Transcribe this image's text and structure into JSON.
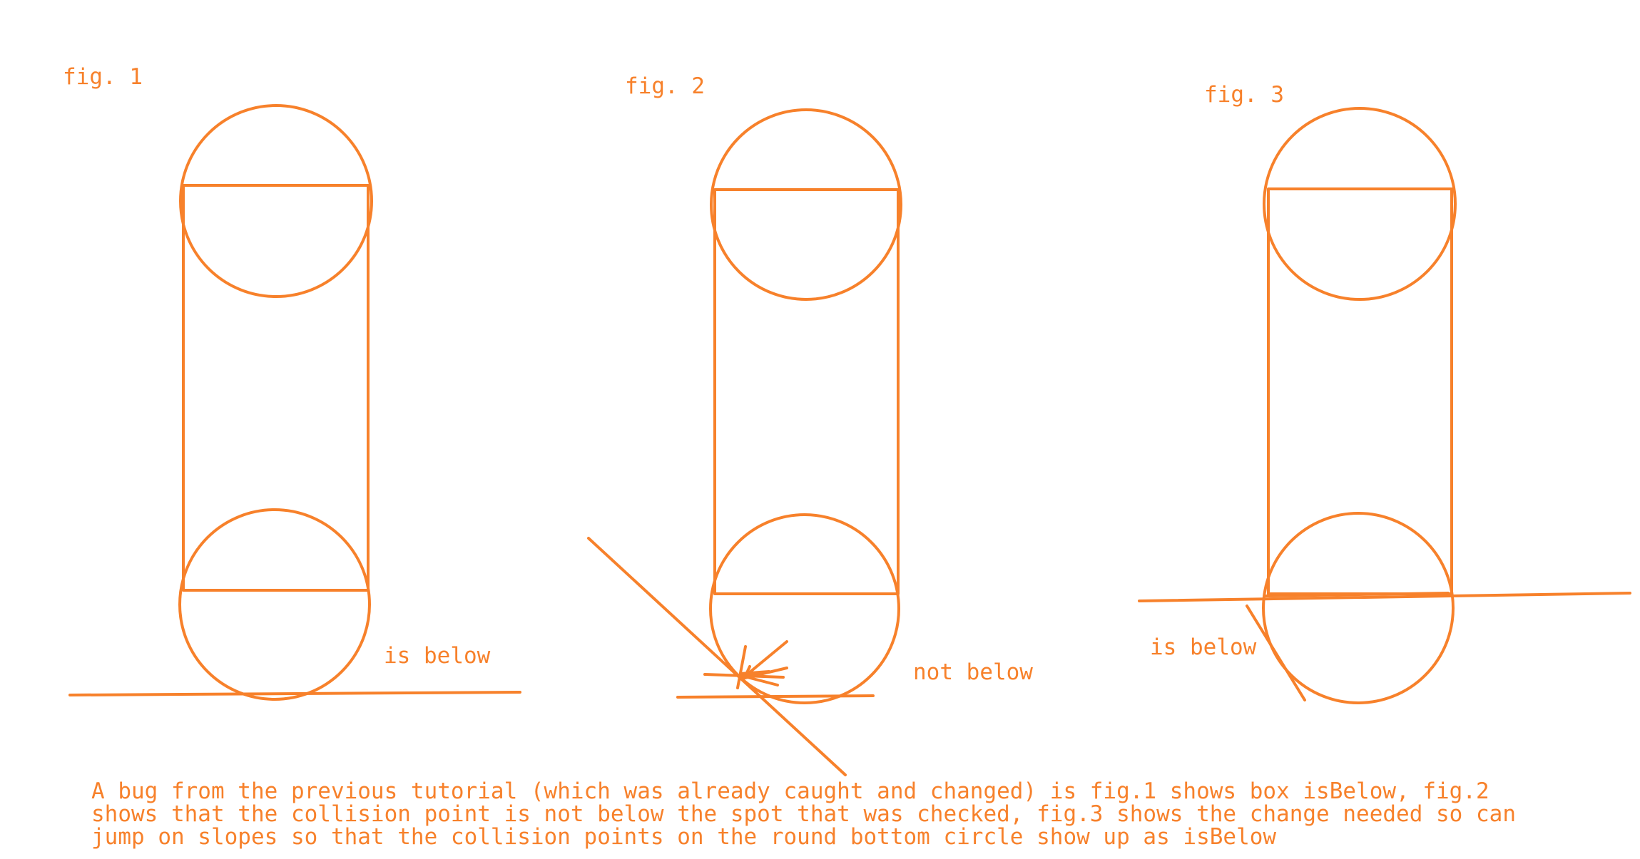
{
  "colors": {
    "stroke": "#f7812b",
    "background": "#ffffff"
  },
  "figures": [
    {
      "title": "fig. 1",
      "label": "is below"
    },
    {
      "title": "fig. 2",
      "label": "not below"
    },
    {
      "title": "fig. 3",
      "label": "is below"
    }
  ],
  "caption": {
    "lines": [
      "A bug from the previous tutorial (which was already caught and changed) is fig.1 shows box isBelow, fig.2",
      "shows that the collision point is not below the spot that was checked, fig.3 shows the change needed so can",
      "jump on slopes so that the collision points on the round bottom circle show up as isBelow"
    ]
  }
}
